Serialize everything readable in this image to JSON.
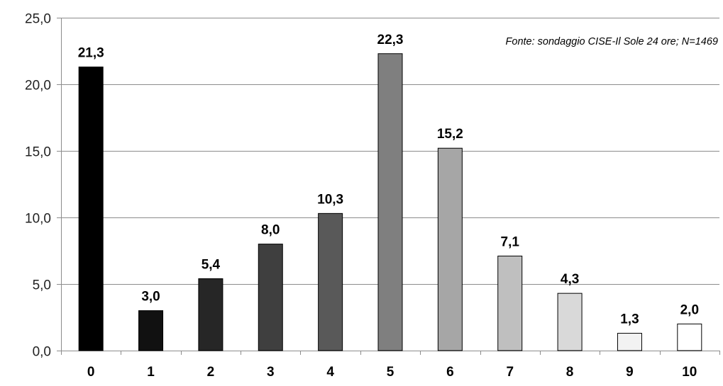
{
  "chart_data": {
    "type": "bar",
    "title": "",
    "xlabel": "",
    "ylabel": "",
    "categories": [
      "0",
      "1",
      "2",
      "3",
      "4",
      "5",
      "6",
      "7",
      "8",
      "9",
      "10"
    ],
    "values": [
      21.3,
      3.0,
      5.4,
      8.0,
      10.3,
      22.3,
      15.2,
      7.1,
      4.3,
      1.3,
      2.0
    ],
    "data_labels": [
      "21,3",
      "3,0",
      "5,4",
      "8,0",
      "10,3",
      "22,3",
      "15,2",
      "7,1",
      "4,3",
      "1,3",
      "2,0"
    ],
    "bar_colors": [
      "#000000",
      "#111111",
      "#262626",
      "#3f3f3f",
      "#595959",
      "#7f7f7f",
      "#a6a6a6",
      "#bfbfbf",
      "#d9d9d9",
      "#f2f2f2",
      "#ffffff"
    ],
    "ylim": [
      0,
      25
    ],
    "yticks": [
      0,
      5,
      10,
      15,
      20,
      25
    ],
    "ytick_labels": [
      "0,0",
      "5,0",
      "10,0",
      "15,0",
      "20,0",
      "25,0"
    ],
    "grid": true,
    "legend": "none",
    "annotation": "Fonte: sondaggio CISE-Il Sole 24 ore; N=1469"
  }
}
